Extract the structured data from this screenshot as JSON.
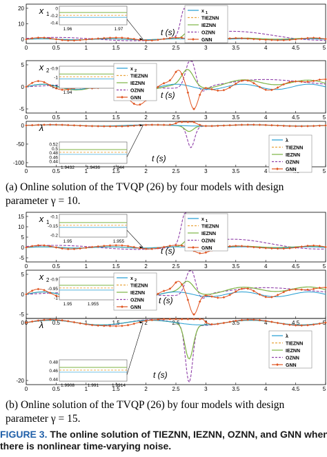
{
  "captions": {
    "a_line1": "(a)  Online solution of the TVQP (26) by four models with design",
    "a_line2": "parameter γ = 10.",
    "b_line1": "(b)  Online solution of the TVQP (26) by four models with design",
    "b_line2": "parameter γ = 15."
  },
  "figure_caption": {
    "label": "FIGURE 3.",
    "text1": " The online solution of TIEZNN, IEZNN, OZNN, and GNN when",
    "text2": "there is nonlinear time-varying noise."
  },
  "colors": {
    "x": "#1f9bd1",
    "tieznn": "#e9a23b",
    "ieznn": "#7cb342",
    "oznn": "#8e3ea8",
    "gnn": "#e0531f"
  },
  "legend_labels": {
    "tieznn": "TIEZNN",
    "ieznn": "IEZNN",
    "oznn": "OZNN",
    "gnn": "GNN"
  },
  "panels": [
    {
      "var": "x1",
      "var_main": "x",
      "var_sub": "1",
      "ylim": [
        -5,
        20
      ],
      "yticks": [
        "20",
        "10",
        "0"
      ],
      "xticks": [
        "0",
        "0.5",
        "1",
        "1.5",
        "2",
        "2.5",
        "3",
        "3.5",
        "4",
        "4.5",
        "5"
      ],
      "show_xlabel": true,
      "xlabel": "t (s)",
      "inset": {
        "yticks": [
          "0",
          "-0.2",
          "-0.4"
        ],
        "xticks": [
          "1.96",
          "1.97"
        ]
      }
    },
    {
      "var": "x2",
      "var_main": "x",
      "var_sub": "2",
      "ylim": [
        -5,
        10
      ],
      "yticks": [
        "5",
        "0",
        "-5"
      ],
      "xticks": [
        "0",
        "0.5",
        "1",
        "1.5",
        "2",
        "2.5",
        "3",
        "3.5",
        "4",
        "4.5",
        "5"
      ],
      "show_xlabel": true,
      "xlabel": "t (s)",
      "inset": {
        "yticks": [
          "-0.9",
          "-1",
          "-1.1"
        ],
        "xticks": [
          "1.94",
          "1.95"
        ]
      }
    },
    {
      "var": "lambda",
      "var_main": "λ",
      "var_sub": "",
      "ylim": [
        -100,
        50
      ],
      "yticks": [
        "0",
        "-50",
        "-100"
      ],
      "xticks": [
        "0",
        "0.5",
        "1",
        "1.5",
        "2",
        "2.5",
        "3",
        "3.5",
        "4",
        "4.5",
        "5"
      ],
      "show_xlabel": true,
      "xlabel": "t (s)",
      "inset": {
        "yticks": [
          "0.52",
          "0.5",
          "0.48",
          "0.46",
          "0.44"
        ],
        "xticks": [
          "1.9432",
          "1.9436",
          "1.944"
        ]
      }
    },
    {
      "var": "x1",
      "var_main": "x",
      "var_sub": "1",
      "ylim": [
        -5,
        20
      ],
      "yticks": [
        "15",
        "10",
        "5",
        "0",
        "-5"
      ],
      "xticks": [
        "0",
        "0.5",
        "1",
        "1.5",
        "2",
        "2.5",
        "3",
        "3.5",
        "4",
        "4.5",
        "5"
      ],
      "show_xlabel": true,
      "xlabel": "t (s)",
      "inset": {
        "yticks": [
          "-0.1",
          "-0.15",
          "-0.2"
        ],
        "xticks": [
          "1.95",
          "1.955"
        ]
      }
    },
    {
      "var": "x2",
      "var_main": "x",
      "var_sub": "2",
      "ylim": [
        -5,
        10
      ],
      "yticks": [
        "5",
        "0",
        "-5"
      ],
      "xticks": [
        "0",
        "0.5",
        "1",
        "1.5",
        "2",
        "2.5",
        "3",
        "3.5",
        "4",
        "4.5",
        "5"
      ],
      "show_xlabel": true,
      "xlabel": "t (s)",
      "inset": {
        "yticks": [
          "-0.9",
          "-0.95",
          "-1"
        ],
        "xticks": [
          "1.95",
          "1.955",
          "1.958"
        ]
      }
    },
    {
      "var": "lambda",
      "var_main": "λ",
      "var_sub": "",
      "ylim": [
        -20,
        20
      ],
      "yticks": [
        "0",
        "-20"
      ],
      "xticks": [
        "0",
        "0.5",
        "1",
        "1.5",
        "2",
        "2.5",
        "3",
        "3.5",
        "4",
        "4.5",
        "5"
      ],
      "show_xlabel": true,
      "xlabel": "t (s)",
      "inset": {
        "yticks": [
          "0.48",
          "0.46",
          "0.44"
        ],
        "xticks": [
          "1.9908",
          "1.991",
          "1.9914"
        ]
      }
    }
  ]
}
